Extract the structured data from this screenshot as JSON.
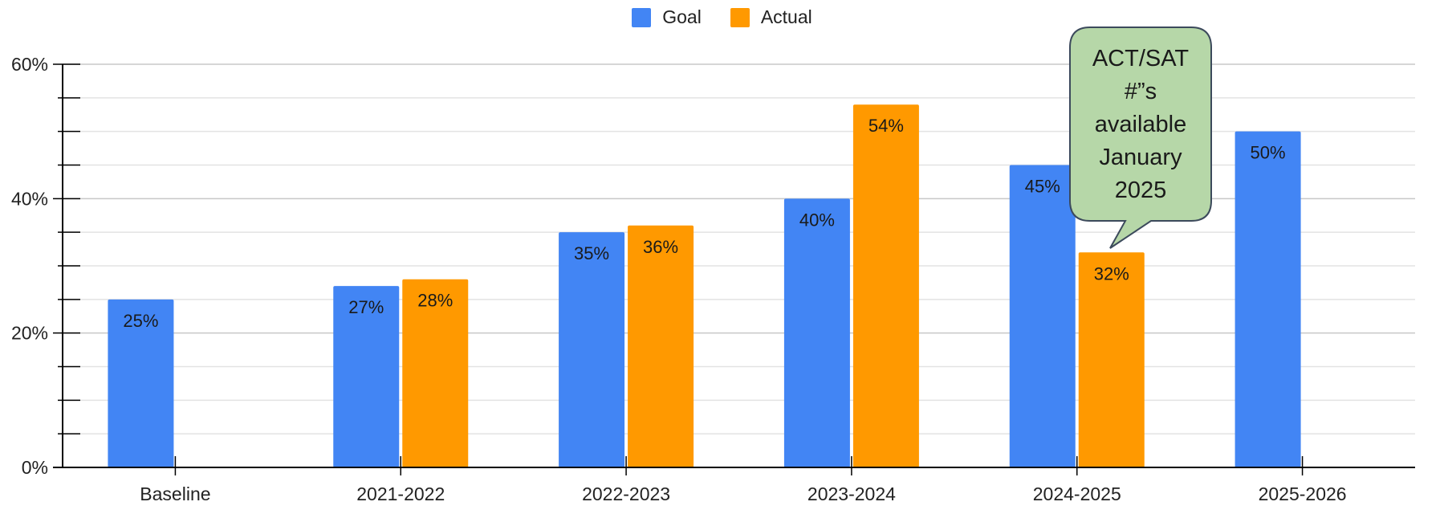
{
  "chart_data": {
    "type": "bar",
    "categories": [
      "Baseline",
      "2021-2022",
      "2022-2023",
      "2023-2024",
      "2024-2025",
      "2025-2026"
    ],
    "series": [
      {
        "name": "Goal",
        "color": "#4285f4",
        "values": [
          25,
          27,
          35,
          40,
          45,
          50
        ],
        "labels": [
          "25%",
          "27%",
          "35%",
          "40%",
          "45%",
          "50%"
        ]
      },
      {
        "name": "Actual",
        "color": "#ff9900",
        "values": [
          null,
          28,
          36,
          54,
          32,
          null
        ],
        "labels": [
          null,
          "28%",
          "36%",
          "54%",
          "32%",
          null
        ]
      }
    ],
    "ylim": [
      0,
      60
    ],
    "yticks": [
      0,
      20,
      40,
      60
    ],
    "ytick_labels": [
      "0%",
      "20%",
      "40%",
      "60%"
    ],
    "xlabel": "",
    "ylabel": "",
    "grid": true,
    "legend_position": "top-center",
    "annotation": {
      "text": "ACT/SAT\n#”s\navailable\nJanuary\n2025",
      "fill": "#b6d7a8",
      "stroke": "#3c4a5c",
      "points_to": "2024-2025 Actual"
    }
  }
}
